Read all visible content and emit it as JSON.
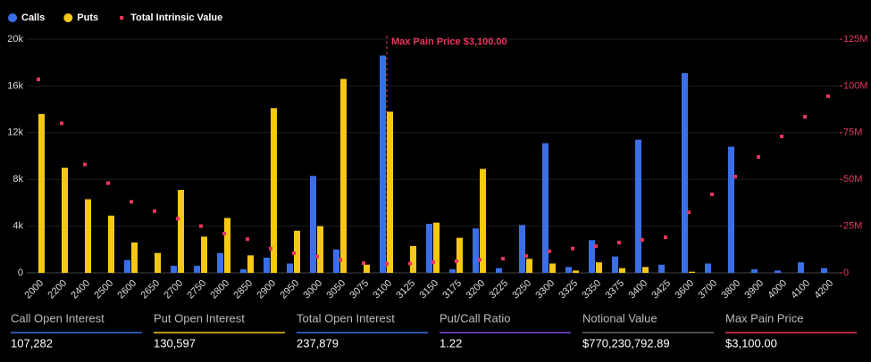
{
  "chart_data": {
    "type": "bar",
    "categories": [
      "2000",
      "2200",
      "2400",
      "2500",
      "2600",
      "2650",
      "2700",
      "2750",
      "2800",
      "2850",
      "2900",
      "2950",
      "3000",
      "3050",
      "3075",
      "3100",
      "3125",
      "3150",
      "3175",
      "3200",
      "3225",
      "3250",
      "3300",
      "3325",
      "3350",
      "3375",
      "3400",
      "3425",
      "3600",
      "3700",
      "3800",
      "3900",
      "4000",
      "4100",
      "4200"
    ],
    "series": [
      {
        "name": "Calls",
        "color": "#3b6fe8",
        "values": [
          0,
          0,
          0,
          0,
          1100,
          0,
          600,
          600,
          1700,
          300,
          1300,
          800,
          8300,
          2000,
          0,
          18600,
          0,
          4200,
          300,
          3800,
          400,
          4100,
          11100,
          500,
          2800,
          1400,
          11400,
          700,
          17100,
          800,
          10800,
          300,
          200,
          900,
          400
        ]
      },
      {
        "name": "Puts",
        "color": "#f5c816",
        "values": [
          13600,
          9000,
          6300,
          4900,
          2600,
          1700,
          7100,
          3100,
          4700,
          1500,
          14100,
          3600,
          4000,
          16600,
          700,
          13800,
          2300,
          4300,
          3000,
          8900,
          0,
          1200,
          800,
          200,
          900,
          400,
          500,
          0,
          100,
          0,
          0,
          0,
          0,
          0,
          0
        ]
      },
      {
        "name": "Total Intrinsic Value",
        "color": "#e8365d",
        "type": "scatter",
        "axis": "y2",
        "values": [
          103500000,
          80000000,
          58000000,
          48000000,
          38000000,
          33000000,
          29000000,
          25000000,
          21000000,
          18000000,
          13000000,
          10500000,
          8600000,
          7000000,
          5200000,
          4800000,
          5000000,
          5700000,
          6200000,
          7000000,
          7600000,
          9000000,
          11500000,
          13000000,
          14300000,
          16200000,
          17600000,
          19000000,
          32400000,
          42000000,
          51500000,
          62000000,
          73000000,
          83500000,
          94500000
        ]
      }
    ],
    "ylim": [
      0,
      20000
    ],
    "yticks": [
      0,
      {
        "value": 4000,
        "label": "4k"
      },
      {
        "value": 8000,
        "label": "8k"
      },
      {
        "value": 12000,
        "label": "12k"
      },
      {
        "value": 16000,
        "label": "16k"
      },
      {
        "value": 20000,
        "label": "20k"
      }
    ],
    "y2lim": [
      0,
      125000000
    ],
    "y2ticks": [
      0,
      {
        "value": 25000000,
        "label": "25M"
      },
      {
        "value": 50000000,
        "label": "50M"
      },
      {
        "value": 75000000,
        "label": "75M"
      },
      {
        "value": 100000000,
        "label": "100M"
      },
      {
        "value": 125000000,
        "label": "125M"
      }
    ],
    "grid": true,
    "annotation": {
      "text": "Max Pain Price $3,100.00",
      "x": "3100",
      "color": "#e8365d"
    }
  },
  "stats": [
    {
      "label": "Call Open Interest",
      "value": "107,282",
      "color": "#3b6fe8"
    },
    {
      "label": "Put Open Interest",
      "value": "130,597",
      "color": "#f5c816"
    },
    {
      "label": "Total Open Interest",
      "value": "237,879",
      "color": "#3b6fe8"
    },
    {
      "label": "Put/Call Ratio",
      "value": "1.22",
      "color": "#7b4fe0"
    },
    {
      "label": "Notional Value",
      "value": "$770,230,792.89",
      "color": "#666666"
    },
    {
      "label": "Max Pain Price",
      "value": "$3,100.00",
      "color": "#e8365d"
    }
  ]
}
